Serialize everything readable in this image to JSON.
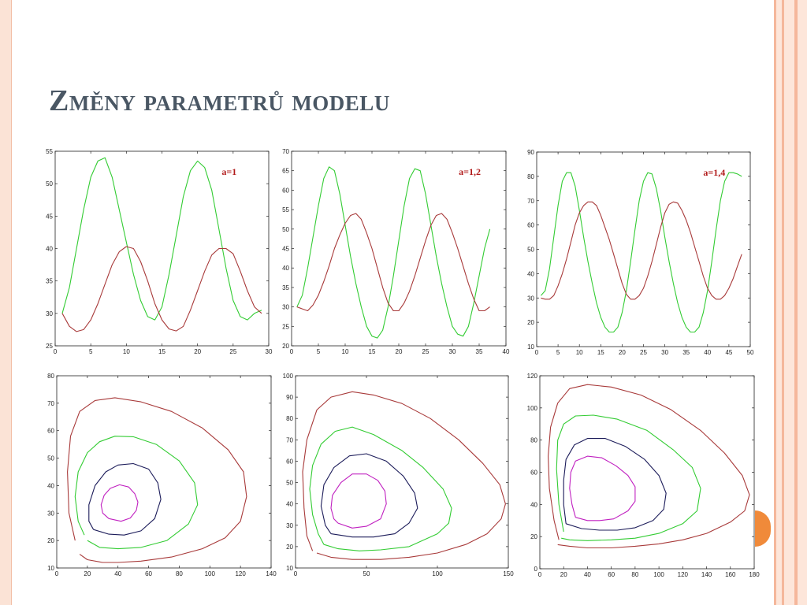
{
  "slide": {
    "title": "Změny parametrů modelu"
  },
  "colors": {
    "green": "#33cc33",
    "red": "#a83a3a",
    "navy": "#1c1c5a",
    "magenta": "#c020c0"
  },
  "chart_data": [
    {
      "type": "line",
      "annotation": "a=1",
      "xlim": [
        0,
        30
      ],
      "ylim": [
        25,
        55
      ],
      "xticks": [
        0,
        5,
        10,
        15,
        20,
        25,
        30
      ],
      "yticks": [
        25,
        30,
        35,
        40,
        45,
        50,
        55
      ],
      "series": [
        {
          "color": "#33cc33",
          "x": [
            1,
            2,
            3,
            4,
            5,
            6,
            7,
            8,
            9,
            10,
            11,
            12,
            13,
            14,
            15,
            16,
            17,
            18,
            19,
            20,
            21,
            22,
            23,
            24,
            25,
            26,
            27,
            28,
            29
          ],
          "y": [
            30,
            34,
            40,
            46,
            51,
            53.5,
            54,
            51,
            46,
            41,
            36,
            32,
            29.5,
            29,
            31,
            36,
            42,
            48,
            52,
            53.5,
            52.5,
            49,
            43,
            37,
            32,
            29.5,
            29,
            30,
            30.5
          ]
        },
        {
          "color": "#a83a3a",
          "x": [
            1,
            2,
            3,
            4,
            5,
            6,
            7,
            8,
            9,
            10,
            11,
            12,
            13,
            14,
            15,
            16,
            17,
            18,
            19,
            20,
            21,
            22,
            23,
            24,
            25,
            26,
            27,
            28,
            29
          ],
          "y": [
            30,
            28,
            27.2,
            27.5,
            29,
            31.5,
            34.5,
            37.5,
            39.5,
            40.3,
            40,
            38,
            35,
            31.5,
            29,
            27.6,
            27.3,
            28,
            30.5,
            33.5,
            36.5,
            39,
            40,
            40,
            39.2,
            36.5,
            33.5,
            31,
            30
          ]
        }
      ]
    },
    {
      "type": "line",
      "annotation": "a=1,2",
      "xlim": [
        0,
        40
      ],
      "ylim": [
        20,
        70
      ],
      "xticks": [
        0,
        5,
        10,
        15,
        20,
        25,
        30,
        35,
        40
      ],
      "yticks": [
        20,
        25,
        30,
        35,
        40,
        45,
        50,
        55,
        60,
        65,
        70
      ],
      "series": [
        {
          "color": "#33cc33",
          "x": [
            1,
            2,
            3,
            4,
            5,
            6,
            7,
            8,
            9,
            10,
            11,
            12,
            13,
            14,
            15,
            16,
            17,
            18,
            19,
            20,
            21,
            22,
            23,
            24,
            25,
            26,
            27,
            28,
            29,
            30,
            31,
            32,
            33,
            34,
            35,
            36,
            37
          ],
          "y": [
            30,
            33,
            40,
            48,
            56,
            63,
            66,
            65,
            59,
            51,
            43,
            36,
            30,
            25,
            22.5,
            22,
            24,
            30,
            38,
            47,
            56,
            63,
            65.5,
            65,
            59,
            51,
            43,
            36,
            30,
            25,
            23,
            22.5,
            25,
            31,
            38,
            45,
            50
          ]
        },
        {
          "color": "#a83a3a",
          "x": [
            1,
            2,
            3,
            4,
            5,
            6,
            7,
            8,
            9,
            10,
            11,
            12,
            13,
            14,
            15,
            16,
            17,
            18,
            19,
            20,
            21,
            22,
            23,
            24,
            25,
            26,
            27,
            28,
            29,
            30,
            31,
            32,
            33,
            34,
            35,
            36,
            37
          ],
          "y": [
            30,
            29.5,
            29,
            30.5,
            33,
            36.5,
            40.5,
            45,
            48.5,
            51.5,
            53.5,
            54,
            52.5,
            49,
            45,
            40,
            35,
            31,
            29,
            29,
            31,
            34,
            38,
            42.5,
            47,
            51,
            53.5,
            54,
            52.5,
            49,
            45,
            40.5,
            36,
            32,
            29,
            29,
            30
          ]
        }
      ]
    },
    {
      "type": "line",
      "annotation": "a=1,4",
      "xlim": [
        0,
        50
      ],
      "ylim": [
        10,
        90
      ],
      "xticks": [
        0,
        5,
        10,
        15,
        20,
        25,
        30,
        35,
        40,
        45,
        50
      ],
      "yticks": [
        10,
        20,
        30,
        40,
        50,
        60,
        70,
        80,
        90
      ],
      "series": [
        {
          "color": "#33cc33",
          "x": [
            1,
            2,
            3,
            4,
            5,
            6,
            7,
            8,
            9,
            10,
            11,
            12,
            13,
            14,
            15,
            16,
            17,
            18,
            19,
            20,
            21,
            22,
            23,
            24,
            25,
            26,
            27,
            28,
            29,
            30,
            31,
            32,
            33,
            34,
            35,
            36,
            37,
            38,
            39,
            40,
            41,
            42,
            43,
            44,
            45,
            46,
            47,
            48
          ],
          "y": [
            31,
            33,
            42,
            55,
            68,
            78,
            81.5,
            81.5,
            76,
            66,
            55,
            45,
            36,
            28,
            22,
            18,
            16,
            16,
            18,
            24,
            33,
            45,
            58,
            70,
            78,
            81.5,
            81,
            75,
            66,
            55,
            45,
            36,
            28,
            22,
            18,
            16,
            16,
            18,
            24,
            33,
            45,
            58,
            70,
            78,
            81.5,
            81.5,
            81,
            80
          ]
        },
        {
          "color": "#a83a3a",
          "x": [
            1,
            2,
            3,
            4,
            5,
            6,
            7,
            8,
            9,
            10,
            11,
            12,
            13,
            14,
            15,
            16,
            17,
            18,
            19,
            20,
            21,
            22,
            23,
            24,
            25,
            26,
            27,
            28,
            29,
            30,
            31,
            32,
            33,
            34,
            35,
            36,
            37,
            38,
            39,
            40,
            41,
            42,
            43,
            44,
            45,
            46,
            47,
            48
          ],
          "y": [
            30,
            29.5,
            29.5,
            31,
            35,
            40,
            46,
            53,
            60,
            65,
            68,
            69.5,
            69.5,
            68,
            64,
            59,
            54,
            48,
            42,
            36,
            31.5,
            29.5,
            29.5,
            31,
            34,
            39,
            45,
            52,
            59,
            65,
            68.5,
            69.5,
            69,
            66,
            62,
            57,
            51,
            45,
            39,
            34,
            31,
            29.5,
            29.5,
            31,
            34,
            38,
            43,
            48
          ]
        }
      ]
    },
    {
      "type": "line",
      "subtype": "phase-portrait",
      "xlim": [
        0,
        140
      ],
      "ylim": [
        10,
        80
      ],
      "xticks": [
        0,
        20,
        40,
        60,
        80,
        100,
        120,
        140
      ],
      "yticks": [
        10,
        20,
        30,
        40,
        50,
        60,
        70,
        80
      ],
      "series": [
        {
          "color": "#a83a3a",
          "closed": false,
          "x": [
            15,
            20,
            30,
            40,
            55,
            75,
            95,
            110,
            120,
            124,
            122,
            112,
            95,
            75,
            55,
            38,
            25,
            15,
            9,
            7,
            8,
            12
          ],
          "y": [
            15,
            13,
            12,
            12,
            12.5,
            14,
            17,
            21,
            27,
            36,
            45,
            53,
            61,
            67,
            70.5,
            72,
            71,
            67,
            58,
            45,
            30,
            20
          ]
        },
        {
          "color": "#33cc33",
          "closed": false,
          "x": [
            20,
            28,
            40,
            55,
            72,
            86,
            92,
            90,
            80,
            65,
            50,
            38,
            28,
            20,
            14,
            12,
            14,
            18
          ],
          "y": [
            20,
            17.5,
            17,
            17.5,
            20,
            26,
            33,
            41,
            49,
            55,
            57.8,
            58,
            56,
            52,
            45,
            36,
            27,
            22
          ]
        },
        {
          "color": "#1c1c5a",
          "closed": true,
          "x": [
            24,
            34,
            44,
            55,
            64,
            68,
            66,
            60,
            50,
            40,
            32,
            25,
            21,
            21
          ],
          "y": [
            24,
            22.3,
            22,
            23.5,
            28,
            35,
            41,
            46,
            48,
            47.5,
            45,
            40,
            33,
            27
          ]
        },
        {
          "color": "#c020c0",
          "closed": true,
          "x": [
            34,
            42,
            48,
            52,
            53,
            51,
            47,
            41,
            35,
            31,
            29,
            30
          ],
          "y": [
            28,
            27,
            28.2,
            31,
            34,
            37,
            39.5,
            40.3,
            39,
            36.5,
            33,
            30
          ]
        }
      ]
    },
    {
      "type": "line",
      "subtype": "phase-portrait",
      "xlim": [
        0,
        150
      ],
      "ylim": [
        10,
        100
      ],
      "xticks": [
        0,
        50,
        100,
        150
      ],
      "yticks": [
        10,
        20,
        30,
        40,
        50,
        60,
        70,
        80,
        90,
        100
      ],
      "series": [
        {
          "color": "#a83a3a",
          "closed": false,
          "x": [
            15,
            25,
            40,
            60,
            80,
            100,
            120,
            135,
            145,
            148,
            144,
            132,
            115,
            95,
            75,
            55,
            40,
            25,
            15,
            8,
            5,
            6,
            8,
            12
          ],
          "y": [
            17,
            15,
            14,
            14,
            15,
            17,
            21,
            26,
            33,
            40,
            49,
            59,
            70,
            80,
            87,
            91,
            92.5,
            90,
            84,
            70,
            55,
            38,
            25,
            18
          ]
        },
        {
          "color": "#33cc33",
          "closed": false,
          "x": [
            20,
            30,
            45,
            60,
            80,
            100,
            108,
            110,
            104,
            90,
            75,
            55,
            40,
            28,
            18,
            12,
            10,
            12,
            16,
            20
          ],
          "y": [
            21,
            19,
            18,
            18.5,
            20,
            26,
            31,
            38,
            47,
            57,
            65,
            72.5,
            76,
            74,
            68,
            58,
            47,
            35,
            26,
            21
          ]
        },
        {
          "color": "#1c1c5a",
          "closed": true,
          "x": [
            25,
            40,
            55,
            70,
            80,
            86,
            84,
            76,
            64,
            50,
            38,
            27,
            20,
            18,
            21
          ],
          "y": [
            26,
            24.5,
            24.5,
            26,
            31,
            38,
            45,
            53,
            60,
            63.5,
            62.5,
            57,
            49,
            39,
            30
          ]
        },
        {
          "color": "#c020c0",
          "closed": true,
          "x": [
            30,
            40,
            50,
            60,
            64,
            63,
            58,
            50,
            40,
            32,
            26,
            25,
            27
          ],
          "y": [
            31,
            28.7,
            29.5,
            33,
            40,
            46,
            51,
            54,
            54,
            50,
            44,
            38,
            33
          ]
        }
      ]
    },
    {
      "type": "line",
      "subtype": "phase-portrait",
      "xlim": [
        0,
        180
      ],
      "ylim": [
        0,
        120
      ],
      "xticks": [
        0,
        20,
        40,
        60,
        80,
        100,
        120,
        140,
        160,
        180
      ],
      "yticks": [
        0,
        20,
        40,
        60,
        80,
        100,
        120
      ],
      "series": [
        {
          "color": "#a83a3a",
          "closed": false,
          "x": [
            15,
            25,
            40,
            60,
            80,
            100,
            120,
            140,
            160,
            172,
            176,
            170,
            155,
            135,
            110,
            85,
            60,
            40,
            25,
            15,
            9,
            7,
            8,
            12,
            16
          ],
          "y": [
            15,
            14,
            13,
            13,
            14,
            15.5,
            18,
            22,
            29,
            36,
            46,
            58,
            72,
            86,
            99,
            108,
            113,
            114.5,
            112,
            103,
            88,
            70,
            50,
            30,
            18
          ]
        },
        {
          "color": "#33cc33",
          "closed": false,
          "x": [
            18,
            25,
            40,
            60,
            80,
            100,
            120,
            132,
            135,
            128,
            112,
            90,
            65,
            45,
            30,
            20,
            15,
            14,
            16,
            20
          ],
          "y": [
            19,
            18,
            17.5,
            18,
            19,
            22,
            28,
            36,
            50,
            63,
            74,
            86,
            93,
            95.5,
            95,
            90,
            80,
            62,
            40,
            23
          ]
        },
        {
          "color": "#1c1c5a",
          "closed": true,
          "x": [
            22,
            35,
            50,
            65,
            80,
            95,
            104,
            106,
            100,
            88,
            72,
            55,
            40,
            29,
            22,
            20,
            20
          ],
          "y": [
            28,
            25,
            24,
            24,
            25.5,
            30,
            37,
            47,
            58,
            68,
            76,
            81,
            81,
            77,
            68,
            55,
            40
          ]
        },
        {
          "color": "#c020c0",
          "closed": true,
          "x": [
            30,
            40,
            50,
            62,
            74,
            80,
            80,
            74,
            64,
            52,
            40,
            30,
            26,
            25,
            27
          ],
          "y": [
            32,
            30,
            30,
            31,
            36,
            42,
            51,
            58,
            64,
            69,
            70,
            67,
            60,
            50,
            40
          ]
        }
      ]
    }
  ]
}
